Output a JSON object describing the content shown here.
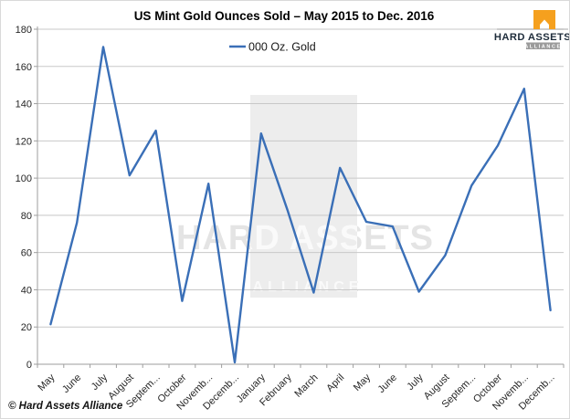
{
  "chart_data": {
    "type": "line",
    "title": "US Mint Gold Ounces Sold – May 2015 to Dec. 2016",
    "categories": [
      "May",
      "June",
      "July",
      "August",
      "Septem...",
      "October",
      "Novemb...",
      "Decemb...",
      "January",
      "February",
      "March",
      "April",
      "May",
      "June",
      "July",
      "August",
      "Septem...",
      "October",
      "Novemb...",
      "Decemb..."
    ],
    "series": [
      {
        "name": "000 Oz. Gold",
        "values": [
          21.5,
          76,
          170.5,
          101.5,
          125.5,
          34,
          97,
          1,
          124,
          83,
          38.5,
          105.5,
          76.5,
          74,
          39,
          58.5,
          96,
          117.5,
          148,
          29
        ]
      }
    ],
    "xlabel": "",
    "ylabel": "",
    "ylim": [
      0,
      180
    ],
    "ytick_step": 20,
    "yticks": [
      0,
      20,
      40,
      60,
      80,
      100,
      120,
      140,
      160,
      180
    ],
    "grid": true,
    "legend_position": "top-center"
  },
  "watermark": {
    "line1": "HARD ASSETS",
    "line2": "ALLIANCE"
  },
  "logo": {
    "brand": "HARD ASSETS",
    "sub": "ALLIANCE"
  },
  "footer": {
    "copyright": "© Hard Assets Alliance"
  },
  "colors": {
    "line": "#3A6FB7",
    "grid": "#C8C8C8",
    "axis": "#9E9E9E",
    "tick_label": "#262626",
    "logo_orange": "#F5A01E",
    "logo_text": "#1D2B3A",
    "badge_gray": "#9B9B9B"
  }
}
